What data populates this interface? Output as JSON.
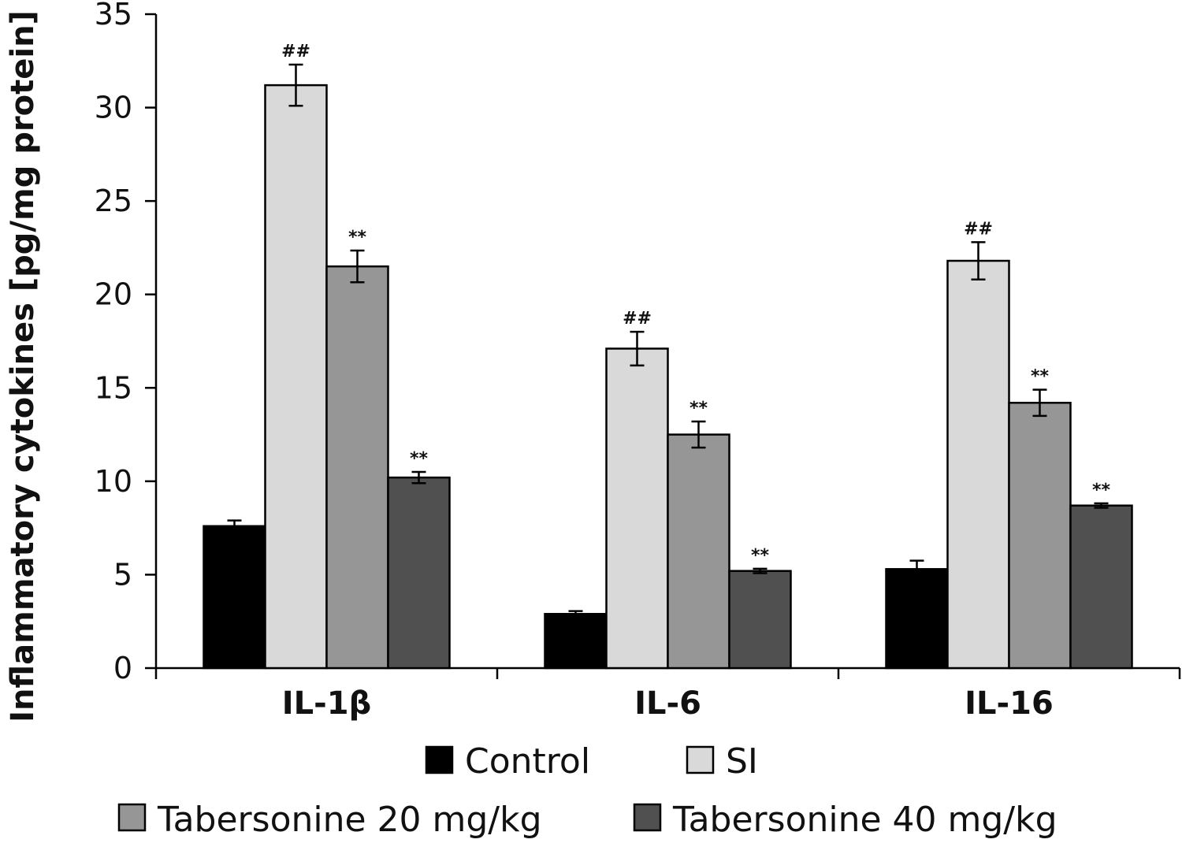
{
  "chart_data": {
    "type": "bar",
    "title": "",
    "xlabel": "",
    "ylabel": "Inflammatory cytokines [pg/mg protein]",
    "ylim": [
      0,
      35
    ],
    "yticks": [
      0,
      5,
      10,
      15,
      20,
      25,
      30,
      35
    ],
    "categories": [
      "IL-1β",
      "IL-6",
      "IL-16"
    ],
    "legend_placement": "bottom",
    "grid": false,
    "series": [
      {
        "name": "Control",
        "color": "#000000",
        "values": [
          7.6,
          2.9,
          5.3
        ],
        "errors": [
          0.3,
          0.15,
          0.45
        ],
        "annotations": [
          "",
          "",
          ""
        ]
      },
      {
        "name": "SI",
        "color": "#d9d9d9",
        "values": [
          31.2,
          17.1,
          21.8
        ],
        "errors": [
          1.1,
          0.9,
          1.0
        ],
        "annotations": [
          "##",
          "##",
          "##"
        ]
      },
      {
        "name": "Tabersonine 20 mg/kg",
        "color": "#969696",
        "values": [
          21.5,
          12.5,
          14.2
        ],
        "errors": [
          0.85,
          0.7,
          0.7
        ],
        "annotations": [
          "**",
          "**",
          "**"
        ]
      },
      {
        "name": "Tabersonine 40 mg/kg",
        "color": "#505050",
        "values": [
          10.2,
          5.2,
          8.7
        ],
        "errors": [
          0.3,
          0.12,
          0.12
        ],
        "annotations": [
          "**",
          "**",
          "**"
        ]
      }
    ]
  }
}
